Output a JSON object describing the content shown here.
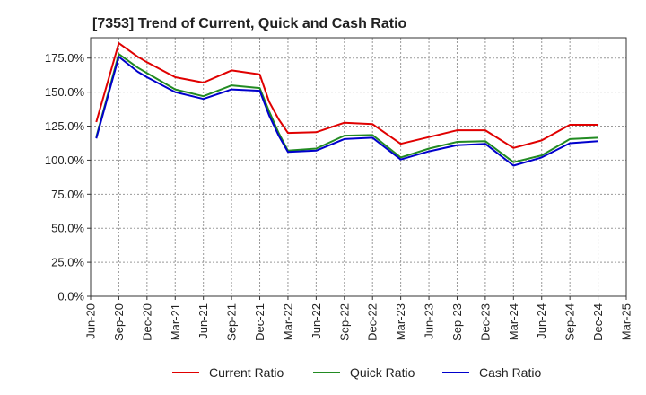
{
  "chart_data": {
    "type": "line",
    "title": "[7353]  Trend of Current, Quick and Cash Ratio",
    "xlabel": "",
    "ylabel": "",
    "ylim": [
      0,
      190
    ],
    "yticks": [
      0,
      25,
      50,
      75,
      100,
      125,
      150,
      175
    ],
    "ytick_labels": [
      "0.0%",
      "25.0%",
      "50.0%",
      "75.0%",
      "100.0%",
      "125.0%",
      "150.0%",
      "175.0%"
    ],
    "xticks": [
      "Jun-20",
      "Sep-20",
      "Dec-20",
      "Mar-21",
      "Jun-21",
      "Sep-21",
      "Dec-21",
      "Mar-22",
      "Jun-22",
      "Sep-22",
      "Dec-22",
      "Mar-23",
      "Jun-23",
      "Sep-23",
      "Dec-23",
      "Mar-24",
      "Jun-24",
      "Sep-24",
      "Dec-24",
      "Mar-25"
    ],
    "x_index": [
      0.2,
      1,
      1.67,
      2,
      3,
      4,
      5,
      6,
      6.33,
      6.67,
      7,
      8,
      9,
      10,
      11,
      12,
      13,
      14,
      15,
      16,
      17,
      18
    ],
    "grid": true,
    "legend_position": "bottom",
    "series": [
      {
        "name": "Current Ratio",
        "color": "#e00000",
        "values": [
          128,
          186,
          176,
          172,
          161,
          157,
          166,
          163,
          143,
          130,
          120,
          120.5,
          127.5,
          126.5,
          112,
          117,
          122,
          122,
          109,
          114.5,
          126,
          126
        ]
      },
      {
        "name": "Quick Ratio",
        "color": "#228b22",
        "values": [
          117,
          178,
          168,
          164,
          152,
          147,
          155,
          153,
          136,
          120,
          107,
          108.5,
          118,
          118.5,
          102,
          108.5,
          113.5,
          114,
          98.5,
          103.5,
          115.5,
          116.5
        ]
      },
      {
        "name": "Cash Ratio",
        "color": "#0000cc",
        "values": [
          116,
          176,
          165,
          161,
          150,
          145,
          152,
          151,
          133,
          118,
          106,
          107,
          115.5,
          116.5,
          100.5,
          106.5,
          111,
          112,
          96,
          102,
          112.5,
          114
        ]
      }
    ]
  }
}
